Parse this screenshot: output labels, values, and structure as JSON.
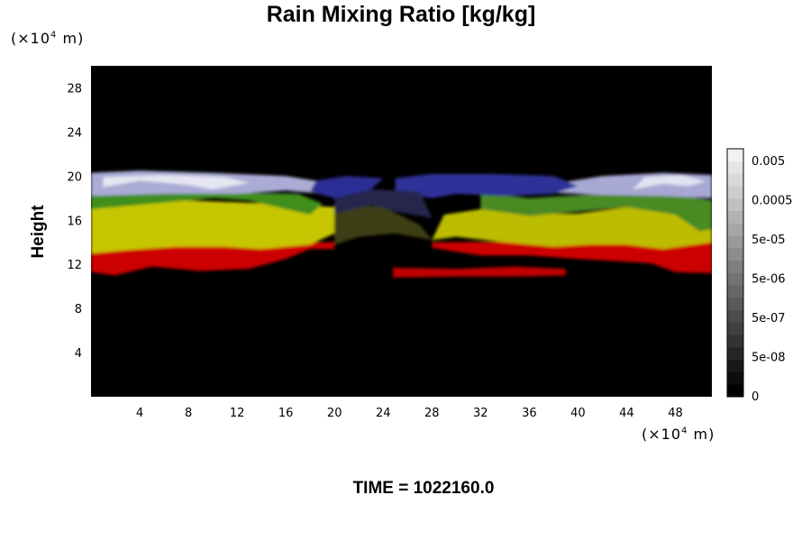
{
  "chart_data": {
    "type": "heatmap",
    "title": "Rain Mixing Ratio [kg/kg]",
    "ylabel": "Height",
    "xlabel": "",
    "x_unit": "(×10",
    "x_unit_exp": "4",
    "x_unit_tail": " m)",
    "y_unit": "(×10",
    "y_unit_exp": "4",
    "y_unit_tail": " m)",
    "xlim": [
      0,
      51
    ],
    "ylim": [
      0,
      30
    ],
    "x_ticks": [
      4,
      8,
      12,
      16,
      20,
      24,
      28,
      32,
      36,
      40,
      44,
      48
    ],
    "y_ticks": [
      4,
      8,
      12,
      16,
      20,
      24,
      28
    ],
    "colorbar": {
      "tick_labels": [
        "0.005",
        "0.0005",
        "5e-05",
        "5e-06",
        "5e-07",
        "5e-08",
        "0"
      ],
      "levels": 20,
      "colors": [
        "#000000",
        "#f2f2f2"
      ]
    },
    "regions": [
      {
        "name": "red layer",
        "color": "#cc0000",
        "points": [
          [
            0,
            11.3
          ],
          [
            2,
            11
          ],
          [
            5,
            11.8
          ],
          [
            9,
            11.4
          ],
          [
            13,
            11.6
          ],
          [
            16,
            12.5
          ],
          [
            18,
            13.4
          ],
          [
            20,
            13.4
          ],
          [
            20,
            14
          ],
          [
            0,
            14
          ]
        ]
      },
      {
        "name": "red layer",
        "color": "#cc0000",
        "points": [
          [
            28,
            14
          ],
          [
            28,
            13.5
          ],
          [
            32,
            12.8
          ],
          [
            36,
            12.8
          ],
          [
            40,
            12.5
          ],
          [
            43,
            12.3
          ],
          [
            46,
            12.1
          ],
          [
            48,
            11.3
          ],
          [
            51,
            11.2
          ],
          [
            51,
            14.2
          ]
        ]
      },
      {
        "name": "red streak",
        "color": "#c00000",
        "points": [
          [
            24.8,
            10.8
          ],
          [
            30,
            10.9
          ],
          [
            35,
            10.9
          ],
          [
            39,
            11
          ],
          [
            39,
            11.6
          ],
          [
            35,
            11.8
          ],
          [
            30,
            11.6
          ],
          [
            24.8,
            11.7
          ]
        ]
      },
      {
        "name": "yellow layer",
        "color": "#c6c600",
        "points": [
          [
            0,
            13
          ],
          [
            3,
            13.3
          ],
          [
            7,
            13.6
          ],
          [
            11,
            13.6
          ],
          [
            14,
            13.4
          ],
          [
            18,
            13.8
          ],
          [
            20,
            14.8
          ],
          [
            20,
            17.2
          ],
          [
            15,
            17.5
          ],
          [
            8,
            17.8
          ],
          [
            0,
            17.3
          ]
        ]
      },
      {
        "name": "yellow layer",
        "color": "#bcbc00",
        "points": [
          [
            28,
            14.2
          ],
          [
            30,
            14.5
          ],
          [
            34,
            14
          ],
          [
            38,
            13.6
          ],
          [
            41,
            13.8
          ],
          [
            44,
            13.8
          ],
          [
            47,
            13.4
          ],
          [
            51,
            14
          ],
          [
            51,
            17.3
          ],
          [
            48,
            17.6
          ],
          [
            44,
            17.2
          ],
          [
            40,
            16.6
          ],
          [
            36,
            16.6
          ],
          [
            32,
            17
          ],
          [
            29,
            16.5
          ]
        ]
      },
      {
        "name": "green layer",
        "color": "#3f8f1e",
        "points": [
          [
            0,
            17
          ],
          [
            5,
            17.5
          ],
          [
            10,
            18
          ],
          [
            13,
            17.8
          ],
          [
            16,
            17
          ],
          [
            18,
            16.5
          ],
          [
            19,
            17.5
          ],
          [
            17,
            18.4
          ],
          [
            12,
            18.5
          ],
          [
            6,
            18.5
          ],
          [
            0,
            18.2
          ]
        ]
      },
      {
        "name": "green layer",
        "color": "#4a8a20",
        "points": [
          [
            32,
            17
          ],
          [
            36,
            16.4
          ],
          [
            40,
            16.8
          ],
          [
            44,
            17.2
          ],
          [
            48,
            16.5
          ],
          [
            50,
            15
          ],
          [
            51,
            15.2
          ],
          [
            51,
            17.8
          ],
          [
            47,
            18.5
          ],
          [
            42,
            18.4
          ],
          [
            36,
            18
          ],
          [
            32,
            18.5
          ]
        ]
      },
      {
        "name": "lavender layer",
        "color": "#aaacd6",
        "points": [
          [
            0,
            18.2
          ],
          [
            6,
            18.4
          ],
          [
            12,
            18.4
          ],
          [
            16,
            18.7
          ],
          [
            19,
            18.4
          ],
          [
            20,
            19.3
          ],
          [
            16,
            20
          ],
          [
            10,
            20.3
          ],
          [
            4,
            20.5
          ],
          [
            0,
            20.3
          ]
        ]
      },
      {
        "name": "lavender layer",
        "color": "#a7a9d4",
        "points": [
          [
            38,
            18.5
          ],
          [
            42,
            18.3
          ],
          [
            47,
            18.2
          ],
          [
            51,
            18
          ],
          [
            51,
            20.1
          ],
          [
            47,
            20.3
          ],
          [
            42,
            20
          ],
          [
            38,
            19.3
          ]
        ]
      },
      {
        "name": "white crest",
        "color": "#e6e6f2",
        "points": [
          [
            1,
            19
          ],
          [
            4,
            19.6
          ],
          [
            8,
            19.2
          ],
          [
            10,
            18.8
          ],
          [
            13,
            19.4
          ],
          [
            11,
            19.9
          ],
          [
            6,
            20.1
          ],
          [
            1,
            19.9
          ]
        ]
      },
      {
        "name": "white crest",
        "color": "#e2e3f0",
        "points": [
          [
            44.5,
            18.8
          ],
          [
            47,
            19.3
          ],
          [
            49,
            19.1
          ],
          [
            50.5,
            19.5
          ],
          [
            48.5,
            20.1
          ],
          [
            45.5,
            19.9
          ]
        ]
      },
      {
        "name": "blue layer",
        "color": "#2a2f94",
        "points": [
          [
            18,
            18.6
          ],
          [
            20,
            18
          ],
          [
            23,
            18.8
          ],
          [
            24,
            19.8
          ],
          [
            21,
            20
          ],
          [
            18.5,
            19.6
          ]
        ]
      },
      {
        "name": "blue layer",
        "color": "#2e3398",
        "points": [
          [
            25,
            18.6
          ],
          [
            28,
            18
          ],
          [
            30,
            18.4
          ],
          [
            34,
            18.2
          ],
          [
            38,
            18.4
          ],
          [
            40,
            19.1
          ],
          [
            38,
            20
          ],
          [
            33,
            20.2
          ],
          [
            28,
            20.2
          ],
          [
            25,
            19.8
          ]
        ]
      },
      {
        "name": "dark olive layer",
        "color": "#3e3e12",
        "points": [
          [
            20,
            13.8
          ],
          [
            22,
            14.5
          ],
          [
            25,
            14.8
          ],
          [
            28,
            14.2
          ],
          [
            27,
            15.6
          ],
          [
            24,
            17.2
          ],
          [
            22,
            17.4
          ],
          [
            20,
            16.6
          ]
        ]
      },
      {
        "name": "dark purple layer",
        "color": "#26264e",
        "points": [
          [
            20,
            16.6
          ],
          [
            23,
            17.4
          ],
          [
            25,
            16.8
          ],
          [
            28,
            16.2
          ],
          [
            27,
            18.6
          ],
          [
            23,
            18.8
          ],
          [
            20,
            18
          ]
        ]
      }
    ]
  },
  "footer": {
    "time_label": "TIME = 1022160.0"
  }
}
